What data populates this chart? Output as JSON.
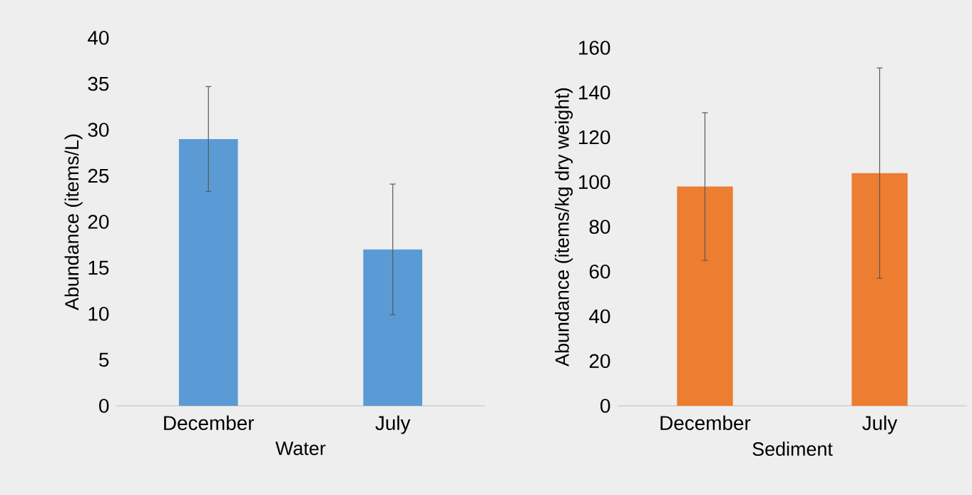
{
  "chart_data": [
    {
      "type": "bar",
      "categories": [
        "December",
        "July"
      ],
      "values": [
        29.0,
        17.0
      ],
      "errors": [
        5.7,
        7.1
      ],
      "color": "#5b9bd5",
      "ylim": [
        0,
        40
      ],
      "yticks": [
        0,
        5,
        10,
        15,
        20,
        25,
        30,
        35,
        40
      ],
      "xlabel": "Water",
      "ylabel": "Abundance (items/L)"
    },
    {
      "type": "bar",
      "categories": [
        "December",
        "July"
      ],
      "values": [
        98,
        104
      ],
      "errors": [
        33,
        47
      ],
      "color": "#ed7d31",
      "ylim": [
        0,
        160
      ],
      "yticks": [
        0,
        20,
        40,
        60,
        80,
        100,
        120,
        140,
        160
      ],
      "xlabel": "Sediment",
      "ylabel": "Abundance (items/kg dry weight)"
    }
  ]
}
